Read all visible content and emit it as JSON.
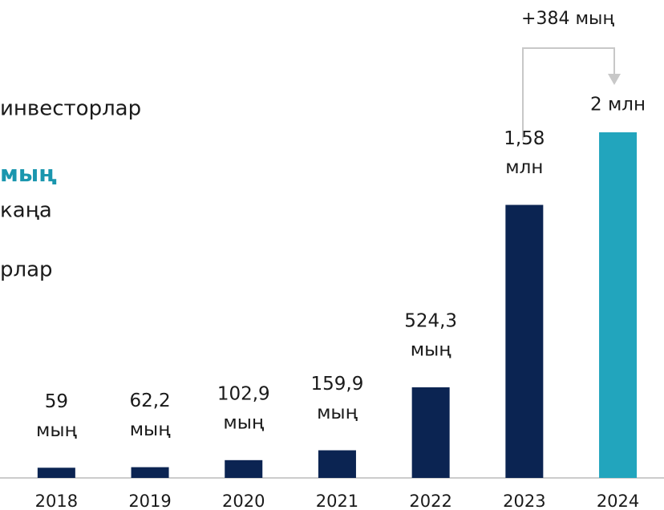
{
  "chart_data": {
    "type": "bar",
    "categories": [
      "2018",
      "2019",
      "2020",
      "2021",
      "2022",
      "2023",
      "2024"
    ],
    "values": [
      59,
      62.2,
      102.9,
      159.9,
      524.3,
      1580,
      2000
    ],
    "value_labels": [
      [
        "59",
        "мың"
      ],
      [
        "62,2",
        "мың"
      ],
      [
        "102,9",
        "мың"
      ],
      [
        "159,9",
        "мың"
      ],
      [
        "524,3",
        "мың"
      ],
      [
        "1,58",
        "млн"
      ],
      [
        "2 млн"
      ]
    ],
    "colors": [
      "#0b2452",
      "#0b2452",
      "#0b2452",
      "#0b2452",
      "#0b2452",
      "#0b2452",
      "#22a5bd"
    ],
    "ylim": [
      0,
      2000
    ],
    "annotation": "+384 мың",
    "side_texts": [
      "инвесторлар",
      "мың",
      "каңа",
      "рлар"
    ]
  }
}
